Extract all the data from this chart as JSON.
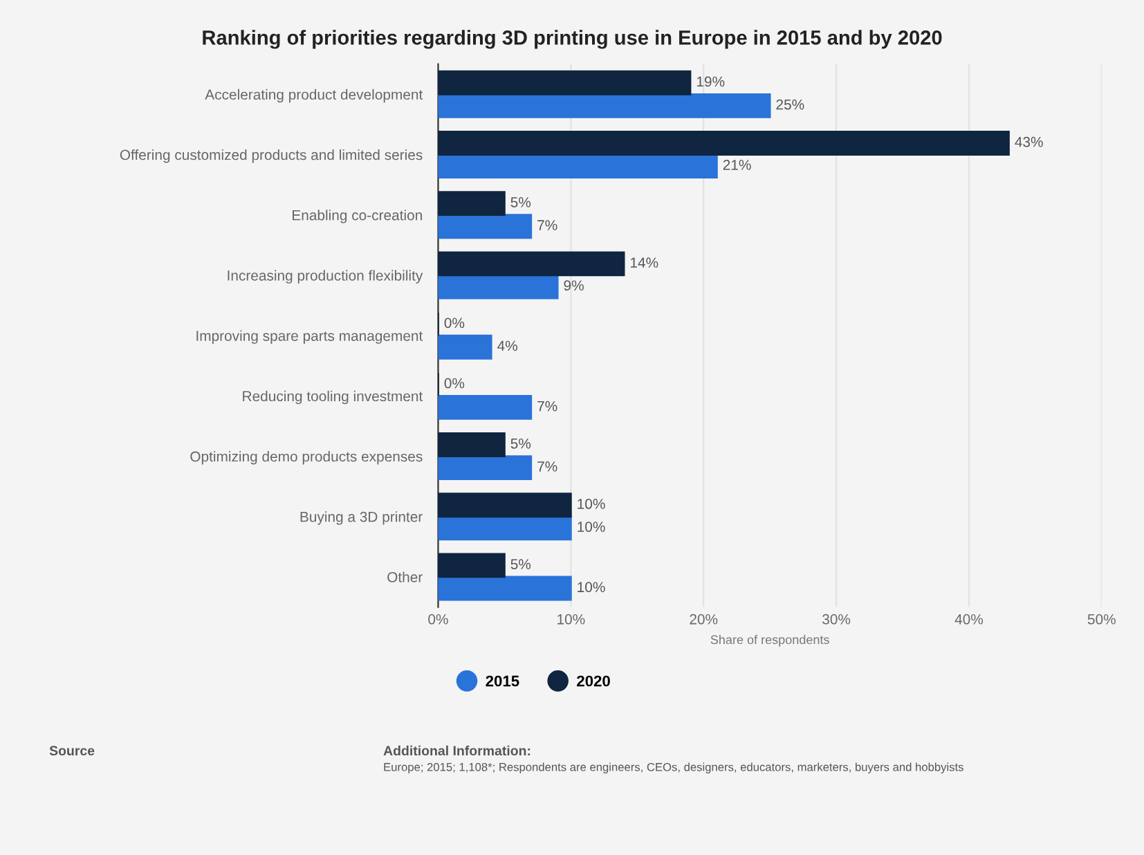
{
  "chart_data": {
    "type": "bar",
    "orientation": "horizontal",
    "title": "Ranking of priorities regarding 3D printing use in Europe in 2015 and by 2020",
    "xlabel": "Share of respondents",
    "categories": [
      "Accelerating product development",
      "Offering customized products and limited series",
      "Enabling co-creation",
      "Increasing production flexibility",
      "Improving spare parts management",
      "Reducing tooling investment",
      "Optimizing demo products expenses",
      "Buying a 3D printer",
      "Other"
    ],
    "series": [
      {
        "name": "2015",
        "color": "#2a73d9",
        "values": [
          25,
          21,
          7,
          9,
          4,
          7,
          7,
          10,
          10
        ],
        "value_labels": [
          "25%",
          "21%",
          "7%",
          "9%",
          "4%",
          "7%",
          "7%",
          "10%",
          "10%"
        ]
      },
      {
        "name": "2020",
        "color": "#0f2540",
        "values": [
          19,
          43,
          5,
          14,
          0,
          0,
          5,
          10,
          5
        ],
        "value_labels": [
          "19%",
          "43%",
          "5%",
          "14%",
          "0%",
          "0%",
          "5%",
          "10%",
          "5%"
        ]
      }
    ],
    "xlim": [
      0,
      50
    ],
    "xticks": [
      {
        "value": 0,
        "label": "0%"
      },
      {
        "value": 10,
        "label": "10%"
      },
      {
        "value": 20,
        "label": "20%"
      },
      {
        "value": 30,
        "label": "30%"
      },
      {
        "value": 40,
        "label": "40%"
      },
      {
        "value": 50,
        "label": "50%"
      }
    ],
    "grid": "x",
    "legend": "bottom",
    "annotations": [
      "Source",
      "Additional Information:",
      "Europe; 2015; 1,108*; Respondents are engineers, CEOs, designers, educators, marketers, buyers and hobbyists"
    ]
  }
}
